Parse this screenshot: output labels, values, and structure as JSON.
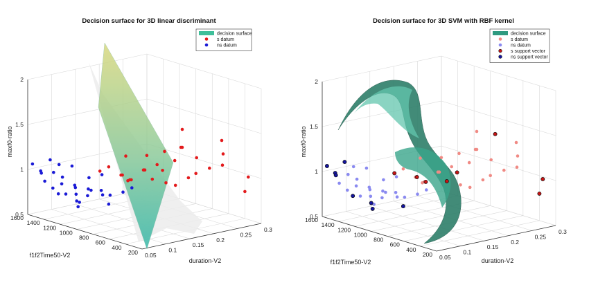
{
  "chart_data": [
    {
      "type": "scatter3d",
      "title": "Decision surface for 3D linear discriminant",
      "xlabel": "duration-V2",
      "ylabel": "f1f2Time50-V2",
      "zlabel": "maxf0-ratio",
      "xlim": [
        0.05,
        0.3
      ],
      "ylim": [
        200,
        1600
      ],
      "zlim": [
        0.5,
        2
      ],
      "xticks": [
        "0.05",
        "0.1",
        "0.15",
        "0.2",
        "0.25",
        "0.3"
      ],
      "yticks": [
        "200",
        "400",
        "600",
        "800",
        "1000",
        "1200",
        "1400",
        "1600"
      ],
      "zticks": [
        "0.5",
        "1",
        "1.5",
        "2"
      ],
      "grid": true,
      "legend_position": "top-right",
      "legend": [
        {
          "label": "decision surface",
          "color": "#3fbf9a",
          "kind": "patch"
        },
        {
          "label": "s datum",
          "color": "#e31a1c",
          "kind": "dot"
        },
        {
          "label": "ns datum",
          "color": "#1a1ad6",
          "kind": "dot"
        }
      ],
      "series": [
        {
          "name": "s datum",
          "color": "#e31a1c",
          "points": [
            [
              0.18,
              900,
              1.2
            ],
            [
              0.2,
              800,
              1.25
            ],
            [
              0.22,
              700,
              1.3
            ],
            [
              0.19,
              1000,
              1.0
            ],
            [
              0.21,
              950,
              1.05
            ],
            [
              0.23,
              850,
              1.1
            ],
            [
              0.25,
              700,
              1.15
            ],
            [
              0.16,
              1100,
              0.95
            ],
            [
              0.17,
              1050,
              0.9
            ],
            [
              0.2,
              950,
              0.9
            ],
            [
              0.24,
              650,
              1.0
            ],
            [
              0.26,
              600,
              1.05
            ],
            [
              0.28,
              550,
              1.2
            ],
            [
              0.22,
              900,
              0.85
            ],
            [
              0.19,
              1150,
              0.85
            ],
            [
              0.18,
              1200,
              0.9
            ],
            [
              0.21,
              1100,
              0.95
            ],
            [
              0.23,
              1000,
              0.95
            ],
            [
              0.27,
              500,
              1.1
            ],
            [
              0.25,
              800,
              0.9
            ],
            [
              0.15,
              1300,
              0.95
            ],
            [
              0.2,
              1250,
              0.8
            ],
            [
              0.24,
              900,
              0.8
            ],
            [
              0.29,
              300,
              1.0
            ],
            [
              0.22,
              700,
              1.5
            ],
            [
              0.26,
              450,
              1.4
            ],
            [
              0.17,
              1100,
              1.15
            ],
            [
              0.3,
              400,
              0.8
            ],
            [
              0.2,
              600,
              1.35
            ],
            [
              0.16,
              1250,
              1.0
            ]
          ]
        },
        {
          "name": "ns datum",
          "color": "#1a1ad6",
          "points": [
            [
              0.06,
              1500,
              1.0
            ],
            [
              0.07,
              1400,
              1.0
            ],
            [
              0.08,
              1350,
              0.95
            ],
            [
              0.06,
              1450,
              0.9
            ],
            [
              0.07,
              1300,
              0.9
            ],
            [
              0.09,
              1250,
              0.85
            ],
            [
              0.08,
              1200,
              0.9
            ],
            [
              0.1,
              1150,
              0.85
            ],
            [
              0.06,
              1350,
              0.85
            ],
            [
              0.07,
              1250,
              0.8
            ],
            [
              0.09,
              1100,
              0.8
            ],
            [
              0.11,
              1050,
              0.85
            ],
            [
              0.08,
              1400,
              0.75
            ],
            [
              0.1,
              1300,
              0.75
            ],
            [
              0.12,
              1000,
              0.8
            ],
            [
              0.07,
              1550,
              0.95
            ],
            [
              0.09,
              1450,
              1.05
            ],
            [
              0.11,
              1200,
              0.95
            ],
            [
              0.13,
              900,
              0.85
            ],
            [
              0.08,
              1500,
              1.1
            ],
            [
              0.1,
              1350,
              1.05
            ],
            [
              0.12,
              1100,
              1.0
            ],
            [
              0.06,
              1600,
              1.05
            ],
            [
              0.14,
              850,
              0.9
            ],
            [
              0.09,
              1200,
              0.7
            ],
            [
              0.11,
              1350,
              0.65
            ],
            [
              0.07,
              1100,
              0.7
            ],
            [
              0.13,
              1150,
              0.75
            ],
            [
              0.1,
              900,
              0.75
            ],
            [
              0.08,
              1000,
              0.9
            ]
          ]
        }
      ]
    },
    {
      "type": "scatter3d",
      "title": "Decision surface for 3D SVM with RBF kernel",
      "xlabel": "duration-V2",
      "ylabel": "f1f2Time50-V2",
      "zlabel": "maxf0-ratio",
      "xlim": [
        0.05,
        0.3
      ],
      "ylim": [
        200,
        1600
      ],
      "zlim": [
        0.5,
        2
      ],
      "xticks": [
        "0.05",
        "0.1",
        "0.15",
        "0.2",
        "0.25",
        "0.3"
      ],
      "yticks": [
        "200",
        "400",
        "600",
        "800",
        "1000",
        "1200",
        "1400",
        "1600"
      ],
      "zticks": [
        "0.5",
        "1",
        "1.5",
        "2"
      ],
      "grid": true,
      "legend_position": "top-right",
      "legend": [
        {
          "label": "decision surface",
          "color": "#2f9a80",
          "kind": "patch"
        },
        {
          "label": "s datum",
          "color": "#f08a84",
          "kind": "dot"
        },
        {
          "label": "ns datum",
          "color": "#8a8af0",
          "kind": "dot"
        },
        {
          "label": "s support vector",
          "color": "#c81414",
          "kind": "dot-outlined"
        },
        {
          "label": "ns support vector",
          "color": "#1414a0",
          "kind": "dot-outlined"
        }
      ],
      "series": [
        {
          "name": "s datum",
          "color": "#f08a84",
          "points": [
            [
              0.18,
              900,
              1.2
            ],
            [
              0.2,
              800,
              1.25
            ],
            [
              0.22,
              700,
              1.3
            ],
            [
              0.19,
              1000,
              1.0
            ],
            [
              0.21,
              950,
              1.05
            ],
            [
              0.23,
              850,
              1.1
            ],
            [
              0.25,
              700,
              1.15
            ],
            [
              0.16,
              1100,
              0.95
            ],
            [
              0.17,
              1050,
              0.9
            ],
            [
              0.24,
              650,
              1.0
            ],
            [
              0.26,
              600,
              1.05
            ],
            [
              0.28,
              550,
              1.2
            ],
            [
              0.22,
              900,
              0.85
            ],
            [
              0.21,
              1100,
              0.95
            ],
            [
              0.27,
              500,
              1.1
            ],
            [
              0.25,
              800,
              0.9
            ],
            [
              0.2,
              1250,
              0.8
            ],
            [
              0.24,
              900,
              0.8
            ],
            [
              0.22,
              700,
              1.5
            ],
            [
              0.26,
              450,
              1.4
            ],
            [
              0.17,
              1100,
              1.15
            ],
            [
              0.2,
              600,
              1.35
            ],
            [
              0.16,
              1250,
              1.0
            ]
          ]
        },
        {
          "name": "ns datum",
          "color": "#8a8af0",
          "points": [
            [
              0.07,
              1400,
              1.0
            ],
            [
              0.08,
              1350,
              0.95
            ],
            [
              0.06,
              1450,
              0.9
            ],
            [
              0.07,
              1300,
              0.9
            ],
            [
              0.09,
              1250,
              0.85
            ],
            [
              0.08,
              1200,
              0.9
            ],
            [
              0.1,
              1150,
              0.85
            ],
            [
              0.06,
              1350,
              0.85
            ],
            [
              0.07,
              1250,
              0.8
            ],
            [
              0.09,
              1100,
              0.8
            ],
            [
              0.11,
              1050,
              0.85
            ],
            [
              0.1,
              1300,
              0.75
            ],
            [
              0.12,
              1000,
              0.8
            ],
            [
              0.09,
              1450,
              1.05
            ],
            [
              0.11,
              1200,
              0.95
            ],
            [
              0.13,
              900,
              0.85
            ],
            [
              0.1,
              1350,
              1.05
            ],
            [
              0.12,
              1100,
              1.0
            ],
            [
              0.14,
              850,
              0.9
            ],
            [
              0.09,
              1200,
              0.7
            ],
            [
              0.13,
              1150,
              0.75
            ],
            [
              0.08,
              1000,
              0.9
            ]
          ]
        },
        {
          "name": "s support vector",
          "color": "#c81414",
          "points": [
            [
              0.18,
              1200,
              0.9
            ],
            [
              0.2,
              950,
              0.9
            ],
            [
              0.15,
              1300,
              0.95
            ],
            [
              0.29,
              300,
              1.0
            ],
            [
              0.3,
              400,
              0.8
            ],
            [
              0.19,
              1150,
              0.85
            ],
            [
              0.23,
              1000,
              0.95
            ],
            [
              0.25,
              650,
              1.45
            ]
          ]
        },
        {
          "name": "ns support vector",
          "color": "#1414a0",
          "points": [
            [
              0.06,
              1500,
              1.0
            ],
            [
              0.08,
              1400,
              0.75
            ],
            [
              0.07,
              1550,
              0.95
            ],
            [
              0.08,
              1500,
              1.1
            ],
            [
              0.06,
              1600,
              1.05
            ],
            [
              0.11,
              1350,
              0.65
            ],
            [
              0.07,
              1100,
              0.7
            ],
            [
              0.1,
              900,
              0.75
            ]
          ]
        }
      ]
    }
  ]
}
